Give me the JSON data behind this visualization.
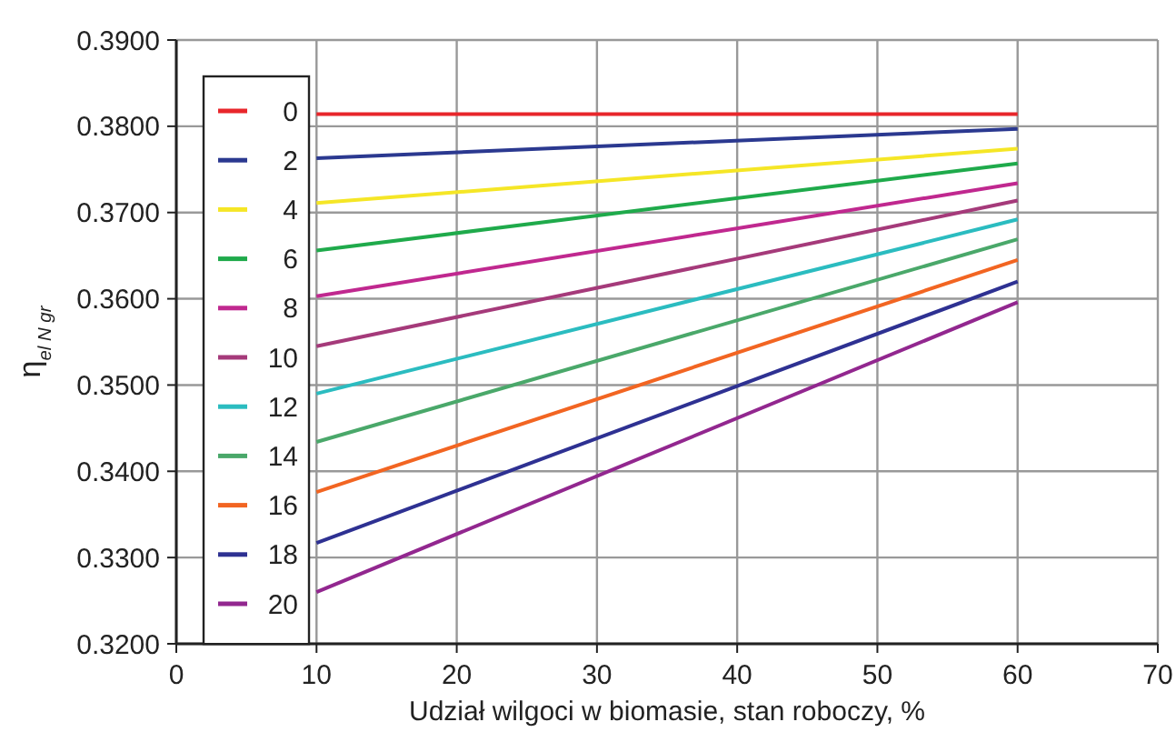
{
  "chart_data": {
    "type": "line",
    "xlabel": "Udział wilgoci w biomasie, stan roboczy, %",
    "ylabel": "η$_{el N gr}$",
    "x": [
      10,
      60
    ],
    "xlim": [
      0,
      70
    ],
    "xticks": [
      0,
      10,
      20,
      30,
      40,
      50,
      60,
      70
    ],
    "ylim": [
      0.32,
      0.39
    ],
    "yticks": [
      {
        "value": 0.32,
        "label": "0.3200"
      },
      {
        "value": 0.33,
        "label": "0.3300"
      },
      {
        "value": 0.34,
        "label": "0.3400"
      },
      {
        "value": 0.35,
        "label": "0.3500"
      },
      {
        "value": 0.36,
        "label": "0.3600"
      },
      {
        "value": 0.37,
        "label": "0.3700"
      },
      {
        "value": 0.38,
        "label": "0.3800"
      },
      {
        "value": 0.39,
        "label": "0.3900"
      }
    ],
    "grid": true,
    "legend": "left",
    "marker": "none",
    "line_style": "solid",
    "series": [
      {
        "name": "0",
        "color": "#e8262b",
        "values": [
          0.3814,
          0.3814
        ]
      },
      {
        "name": "2",
        "color": "#2b3990",
        "values": [
          0.3763,
          0.3797
        ]
      },
      {
        "name": "4",
        "color": "#f5e626",
        "values": [
          0.3711,
          0.3774
        ]
      },
      {
        "name": "6",
        "color": "#1faa4b",
        "values": [
          0.3656,
          0.3757
        ]
      },
      {
        "name": "8",
        "color": "#c0288f",
        "values": [
          0.3603,
          0.3734
        ]
      },
      {
        "name": "10",
        "color": "#a53a7a",
        "values": [
          0.3545,
          0.3714
        ]
      },
      {
        "name": "12",
        "color": "#2bbcc0",
        "values": [
          0.349,
          0.3692
        ]
      },
      {
        "name": "14",
        "color": "#4aa86a",
        "values": [
          0.3434,
          0.3669
        ]
      },
      {
        "name": "16",
        "color": "#f26522",
        "values": [
          0.3376,
          0.3645
        ]
      },
      {
        "name": "18",
        "color": "#2e3192",
        "values": [
          0.3317,
          0.362
        ]
      },
      {
        "name": "20",
        "color": "#92278f",
        "values": [
          0.326,
          0.3596
        ]
      }
    ]
  }
}
